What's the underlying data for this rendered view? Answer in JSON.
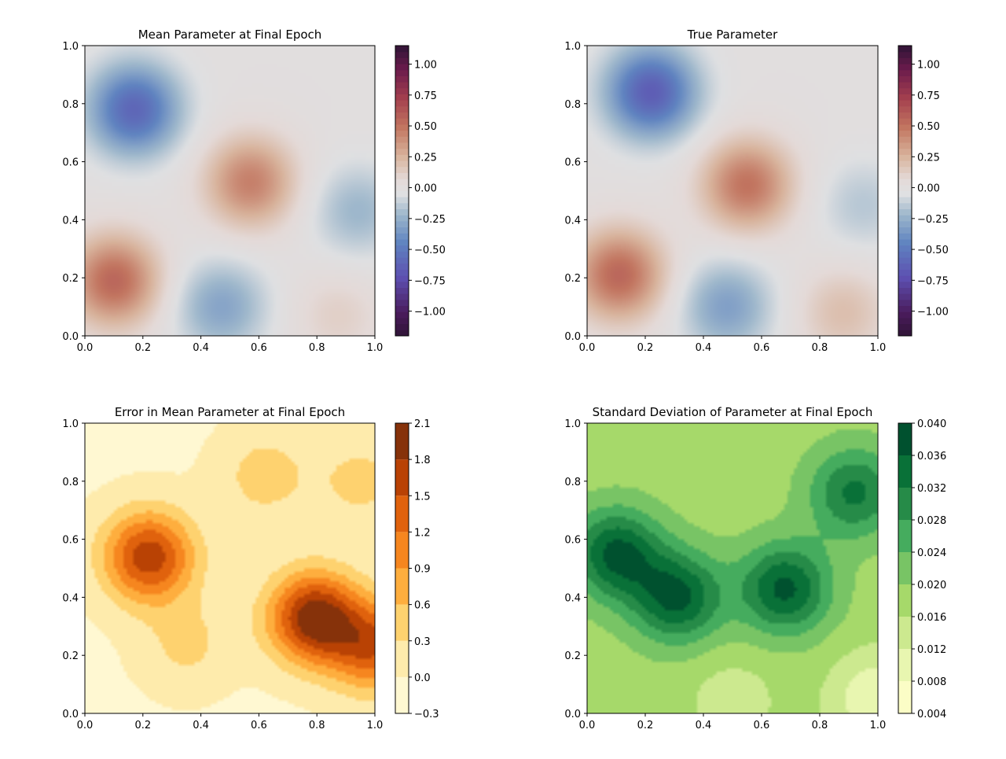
{
  "figure": {
    "layout": "2x2 grid"
  },
  "colors": {
    "axis": "#000000",
    "background": "#ffffff"
  },
  "chart_data": [
    {
      "type": "heatmap",
      "title": "Mean Parameter at Final Epoch",
      "xlim": [
        0.0,
        1.0
      ],
      "ylim": [
        0.0,
        1.0
      ],
      "xticks": [
        "0.0",
        "0.2",
        "0.4",
        "0.6",
        "0.8",
        "1.0"
      ],
      "yticks": [
        "0.0",
        "0.2",
        "0.4",
        "0.6",
        "0.8",
        "1.0"
      ],
      "colormap": "twilight_shifted",
      "colorbar": {
        "range": [
          -1.2,
          1.15
        ],
        "ticks": [
          "1.00",
          "0.75",
          "0.50",
          "0.25",
          "0.00",
          "−0.25",
          "−0.50",
          "−0.75",
          "−1.00"
        ],
        "tick_values": [
          1.0,
          0.75,
          0.5,
          0.25,
          0.0,
          -0.25,
          -0.5,
          -0.75,
          -1.0
        ]
      },
      "features": [
        {
          "x": 0.17,
          "y": 0.78,
          "value": -0.6
        },
        {
          "x": 0.57,
          "y": 0.53,
          "value": 0.45
        },
        {
          "x": 0.1,
          "y": 0.19,
          "value": 0.55
        },
        {
          "x": 0.47,
          "y": 0.1,
          "value": -0.3
        },
        {
          "x": 0.94,
          "y": 0.43,
          "value": -0.22
        },
        {
          "x": 0.87,
          "y": 0.07,
          "value": 0.12
        }
      ]
    },
    {
      "type": "heatmap",
      "title": "True Parameter",
      "xlim": [
        0.0,
        1.0
      ],
      "ylim": [
        0.0,
        1.0
      ],
      "xticks": [
        "0.0",
        "0.2",
        "0.4",
        "0.6",
        "0.8",
        "1.0"
      ],
      "yticks": [
        "0.0",
        "0.2",
        "0.4",
        "0.6",
        "0.8",
        "1.0"
      ],
      "colormap": "twilight_shifted",
      "colorbar": {
        "range": [
          -1.2,
          1.15
        ],
        "ticks": [
          "1.00",
          "0.75",
          "0.50",
          "0.25",
          "0.00",
          "−0.25",
          "−0.50",
          "−0.75",
          "−1.00"
        ],
        "tick_values": [
          1.0,
          0.75,
          0.5,
          0.25,
          0.0,
          -0.25,
          -0.5,
          -0.75,
          -1.0
        ]
      },
      "features": [
        {
          "x": 0.22,
          "y": 0.84,
          "value": -0.65
        },
        {
          "x": 0.55,
          "y": 0.52,
          "value": 0.5
        },
        {
          "x": 0.11,
          "y": 0.21,
          "value": 0.55
        },
        {
          "x": 0.48,
          "y": 0.1,
          "value": -0.32
        },
        {
          "x": 0.95,
          "y": 0.45,
          "value": -0.15
        },
        {
          "x": 0.88,
          "y": 0.08,
          "value": 0.2
        }
      ]
    },
    {
      "type": "heatmap",
      "title": "Error in Mean Parameter at Final Epoch",
      "xlim": [
        0.0,
        1.0
      ],
      "ylim": [
        0.0,
        1.0
      ],
      "xticks": [
        "0.0",
        "0.2",
        "0.4",
        "0.6",
        "0.8",
        "1.0"
      ],
      "yticks": [
        "0.0",
        "0.2",
        "0.4",
        "0.6",
        "0.8",
        "1.0"
      ],
      "colormap": "YlOrBr",
      "colorbar": {
        "range": [
          -0.3,
          2.1
        ],
        "ticks": [
          "2.1",
          "1.8",
          "1.5",
          "1.2",
          "0.9",
          "0.6",
          "0.3",
          "0.0",
          "−0.3"
        ],
        "tick_values": [
          2.1,
          1.8,
          1.5,
          1.2,
          0.9,
          0.6,
          0.3,
          0.0,
          -0.3
        ],
        "levels": [
          -0.3,
          0.0,
          0.3,
          0.6,
          0.9,
          1.2,
          1.5,
          1.8,
          2.1
        ],
        "colors": [
          "#fff8d2",
          "#feebac",
          "#fed26f",
          "#feae3e",
          "#f6861f",
          "#e0620d",
          "#b94204",
          "#86320a"
        ]
      },
      "features": [
        {
          "x": 0.22,
          "y": 0.54,
          "value": 1.7
        },
        {
          "x": 0.79,
          "y": 0.33,
          "value": 2.0
        },
        {
          "x": 1.0,
          "y": 0.23,
          "value": 1.4
        },
        {
          "x": 0.62,
          "y": 0.82,
          "value": 0.45
        },
        {
          "x": 0.95,
          "y": 0.8,
          "value": 0.4
        },
        {
          "x": 0.35,
          "y": 0.24,
          "value": 0.38
        }
      ]
    },
    {
      "type": "heatmap",
      "title": "Standard Deviation of Parameter at Final Epoch",
      "xlim": [
        0.0,
        1.0
      ],
      "ylim": [
        0.0,
        1.0
      ],
      "xticks": [
        "0.0",
        "0.2",
        "0.4",
        "0.6",
        "0.8",
        "1.0"
      ],
      "yticks": [
        "0.0",
        "0.2",
        "0.4",
        "0.6",
        "0.8",
        "1.0"
      ],
      "colormap": "YlGn",
      "colorbar": {
        "range": [
          0.004,
          0.04
        ],
        "ticks": [
          "0.040",
          "0.036",
          "0.032",
          "0.028",
          "0.024",
          "0.020",
          "0.016",
          "0.012",
          "0.008",
          "0.004"
        ],
        "tick_values": [
          0.04,
          0.036,
          0.032,
          0.028,
          0.024,
          0.02,
          0.016,
          0.012,
          0.008,
          0.004
        ],
        "levels": [
          0.004,
          0.008,
          0.012,
          0.016,
          0.02,
          0.024,
          0.028,
          0.032,
          0.036,
          0.04
        ],
        "colors": [
          "#fbfdc6",
          "#e8f6b0",
          "#cce98f",
          "#a6d96a",
          "#78c465",
          "#45ac5e",
          "#268b48",
          "#097138",
          "#00512f"
        ]
      },
      "features": [
        {
          "x": 0.1,
          "y": 0.55,
          "value": 0.037
        },
        {
          "x": 0.31,
          "y": 0.4,
          "value": 0.037
        },
        {
          "x": 0.68,
          "y": 0.43,
          "value": 0.037
        },
        {
          "x": 0.92,
          "y": 0.76,
          "value": 0.033
        },
        {
          "x": 0.5,
          "y": 0.05,
          "value": 0.014
        },
        {
          "x": 1.0,
          "y": 0.05,
          "value": 0.008
        }
      ]
    }
  ]
}
